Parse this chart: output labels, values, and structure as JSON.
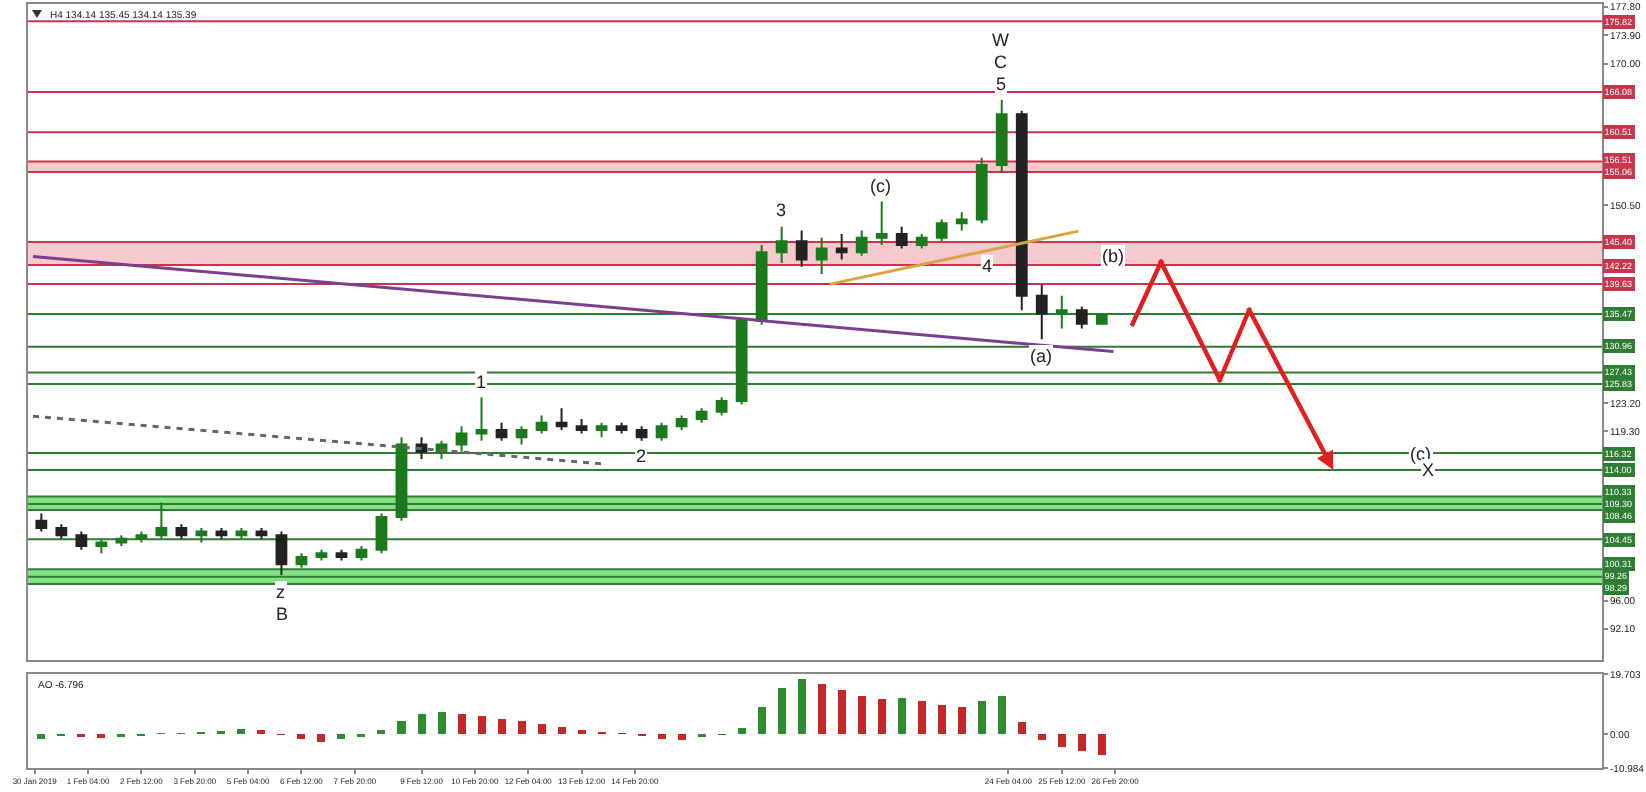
{
  "chart_data": [
    {
      "type": "candlestick",
      "title": "H4 134.14 135.45 134.14 135.39",
      "x": [
        "2019-01-31T00:00",
        "2019-01-31T12:00",
        "2019-02-01T00:00",
        "2019-02-01T12:00",
        "2019-02-02T00:00",
        "2019-02-02T12:00",
        "2019-02-03T00:00",
        "2019-02-03T12:00",
        "2019-02-04T00:00",
        "2019-02-04T12:00",
        "2019-02-05T00:00",
        "2019-02-05T12:00",
        "2019-02-06T00:00",
        "2019-02-06T12:00",
        "2019-02-07T00:00",
        "2019-02-07T12:00",
        "2019-02-08T00:00",
        "2019-02-08T12:00",
        "2019-02-09T00:00",
        "2019-02-09T12:00",
        "2019-02-10T00:00",
        "2019-02-10T12:00",
        "2019-02-11T00:00",
        "2019-02-11T12:00",
        "2019-02-12T00:00",
        "2019-02-12T12:00",
        "2019-02-13T00:00",
        "2019-02-13T12:00",
        "2019-02-14T00:00",
        "2019-02-14T12:00",
        "2019-02-15T00:00",
        "2019-02-15T12:00",
        "2019-02-16T00:00",
        "2019-02-16T12:00",
        "2019-02-17T00:00",
        "2019-02-17T12:00",
        "2019-02-18T00:00",
        "2019-02-18T12:00",
        "2019-02-19T00:00",
        "2019-02-19T12:00",
        "2019-02-20T00:00",
        "2019-02-20T12:00",
        "2019-02-21T00:00",
        "2019-02-21T12:00",
        "2019-02-22T00:00",
        "2019-02-22T12:00",
        "2019-02-23T00:00",
        "2019-02-23T12:00",
        "2019-02-24T00:00",
        "2019-02-24T12:00",
        "2019-02-25T00:00",
        "2019-02-25T12:00",
        "2019-02-26T00:00",
        "2019-02-26T12:00"
      ],
      "ohlc": [
        [
          107,
          108,
          105.5,
          106
        ],
        [
          106,
          106.5,
          104.5,
          105
        ],
        [
          105,
          105.5,
          103,
          103.5
        ],
        [
          103.5,
          104.5,
          102.5,
          104
        ],
        [
          104,
          105,
          103.5,
          104.5
        ],
        [
          104.5,
          105.5,
          104,
          105
        ],
        [
          105,
          109.5,
          104.5,
          106
        ],
        [
          106,
          106.5,
          104.5,
          105
        ],
        [
          105,
          106,
          104,
          105.5
        ],
        [
          105.5,
          106,
          104.5,
          105
        ],
        [
          105,
          106,
          104.5,
          105.5
        ],
        [
          105.5,
          106,
          104.5,
          105
        ],
        [
          105,
          105.5,
          99.5,
          101
        ],
        [
          101,
          102.5,
          100.5,
          102
        ],
        [
          102,
          103,
          101.5,
          102.5
        ],
        [
          102.5,
          103,
          101.5,
          102
        ],
        [
          102,
          103.5,
          101.5,
          103
        ],
        [
          103,
          108,
          102.5,
          107.5
        ],
        [
          107.5,
          118.5,
          107,
          117.5
        ],
        [
          117.5,
          118.5,
          115.5,
          116.5
        ],
        [
          116.5,
          118,
          115.5,
          117.5
        ],
        [
          117.5,
          120,
          116.5,
          119
        ],
        [
          119,
          124,
          118,
          119.5
        ],
        [
          119.5,
          120.5,
          118,
          118.5
        ],
        [
          118.5,
          120,
          117.5,
          119.5
        ],
        [
          119.5,
          121.5,
          119,
          120.5
        ],
        [
          120.5,
          122.5,
          119.5,
          120
        ],
        [
          120,
          121,
          119,
          119.5
        ],
        [
          119.5,
          120.5,
          118.5,
          120
        ],
        [
          120,
          120.5,
          119,
          119.5
        ],
        [
          119.5,
          120,
          118,
          118.5
        ],
        [
          118.5,
          120.5,
          118,
          120
        ],
        [
          120,
          121.5,
          119.5,
          121
        ],
        [
          121,
          122.5,
          120.5,
          122
        ],
        [
          122,
          124,
          121.5,
          123.5
        ],
        [
          123.5,
          135,
          123,
          134.5
        ],
        [
          134.5,
          145,
          134,
          144
        ],
        [
          144,
          147.5,
          142.5,
          145.5
        ],
        [
          145.5,
          147,
          142,
          143
        ],
        [
          143,
          146,
          141,
          144.5
        ],
        [
          144.5,
          146.5,
          143,
          144
        ],
        [
          144,
          147,
          143.5,
          146
        ],
        [
          146,
          151,
          145,
          146.5
        ],
        [
          146.5,
          147.5,
          144.5,
          145
        ],
        [
          145,
          146.5,
          144.5,
          146
        ],
        [
          146,
          148.5,
          145.5,
          148
        ],
        [
          148,
          149.5,
          147,
          148.5
        ],
        [
          148.5,
          157,
          148,
          156
        ],
        [
          156,
          165,
          155,
          163
        ],
        [
          163,
          163.5,
          136,
          138
        ],
        [
          138,
          139.5,
          132,
          135.5
        ],
        [
          135.5,
          138,
          133.5,
          136
        ],
        [
          136,
          136.5,
          133.5,
          134.14
        ],
        [
          134.14,
          135.45,
          134.14,
          135.39
        ]
      ],
      "xlim": [
        "2019-01-30T16:00",
        "2019-03-11T00:00"
      ],
      "ylim": [
        87.8,
        178.2
      ],
      "yticks": [
        {
          "value": 177.8,
          "label": "177.80"
        },
        {
          "value": 173.9,
          "label": "173.90"
        },
        {
          "value": 170,
          "label": "170.00"
        },
        {
          "value": 150.5,
          "label": "150.50"
        },
        {
          "value": 123.2,
          "label": "123.20"
        },
        {
          "value": 119.3,
          "label": "119.30"
        },
        {
          "value": 96,
          "label": "96.00"
        },
        {
          "value": 92.1,
          "label": "92.10"
        }
      ],
      "tick_labels": "y",
      "bands": [
        {
          "axis": "y",
          "from": 155.06,
          "to": 156.51,
          "color": "#f6c9ce"
        },
        {
          "axis": "y",
          "from": 142.22,
          "to": 145.4,
          "color": "#f6c9ce"
        },
        {
          "axis": "y",
          "from": 108.46,
          "to": 110.33,
          "color": "#86e086"
        },
        {
          "axis": "y",
          "from": 98.29,
          "to": 100.31,
          "color": "#86e086"
        }
      ],
      "ref_lines": [
        {
          "axis": "y",
          "value": 175.82,
          "label": "175.82",
          "color": "#c8364c"
        },
        {
          "axis": "y",
          "value": 166.08,
          "label": "166.08",
          "color": "#c8364c"
        },
        {
          "axis": "y",
          "value": 160.51,
          "label": "160.51",
          "color": "#c8364c"
        },
        {
          "axis": "y",
          "value": 156.51,
          "label": "156.51",
          "color": "#c8364c"
        },
        {
          "axis": "y",
          "value": 155.06,
          "label": "155.06",
          "color": "#c8364c"
        },
        {
          "axis": "y",
          "value": 145.4,
          "label": "145.40",
          "color": "#c8364c"
        },
        {
          "axis": "y",
          "value": 142.22,
          "label": "142.22",
          "color": "#c8364c"
        },
        {
          "axis": "y",
          "value": 139.63,
          "label": "139.63",
          "color": "#c8364c"
        },
        {
          "axis": "y",
          "value": 135.47,
          "label": "135.47",
          "color": "#2e7d32"
        },
        {
          "axis": "y",
          "value": 130.96,
          "label": "130.96",
          "color": "#2e7d32"
        },
        {
          "axis": "y",
          "value": 127.43,
          "label": "127.43",
          "color": "#2e7d32"
        },
        {
          "axis": "y",
          "value": 125.83,
          "label": "125.83",
          "color": "#2e7d32"
        },
        {
          "axis": "y",
          "value": 116.32,
          "label": "116.32",
          "color": "#2e7d32"
        },
        {
          "axis": "y",
          "value": 114,
          "label": "114.00",
          "color": "#2e7d32"
        },
        {
          "axis": "y",
          "value": 110.33,
          "label": "110.33",
          "color": "#2e7d32"
        },
        {
          "axis": "y",
          "value": 109.3,
          "label": "109.30",
          "color": "#2e7d32"
        },
        {
          "axis": "y",
          "value": 108.46,
          "label": "108.46",
          "color": "#2e7d32"
        },
        {
          "axis": "y",
          "value": 104.45,
          "label": "104.45",
          "color": "#2e7d32"
        },
        {
          "axis": "y",
          "value": 100.31,
          "label": "100.31",
          "color": "#2e7d32"
        },
        {
          "axis": "y",
          "value": 99.26,
          "label": "99.26",
          "color": "#2e7d32"
        },
        {
          "axis": "y",
          "value": 98.29,
          "label": "98.29",
          "color": "#2e7d32"
        }
      ],
      "series": [
        {
          "type": "line",
          "color": "#7b3f8f",
          "x": [
            "2019-01-30T19:00",
            "2019-02-26T19:00"
          ],
          "values": [
            143.4,
            130.3
          ]
        },
        {
          "type": "line",
          "color": "#666666",
          "line_style": "dotted",
          "x": [
            "2019-01-30T19:00",
            "2019-02-14T02:00"
          ],
          "values": [
            121.4,
            114.8
          ]
        },
        {
          "type": "line",
          "color": "#d9a441",
          "x": [
            "2019-02-19T17:00",
            "2019-02-25T22:00"
          ],
          "values": [
            139.6,
            146.9
          ]
        }
      ],
      "annotations": [
        {
          "text": "W",
          "x": "2019-02-24T00:00",
          "y": 165
        },
        {
          "text": "C",
          "x": "2019-02-24T00:00",
          "y": 165
        },
        {
          "text": "5",
          "x": "2019-02-24T00:00",
          "y": 165
        },
        {
          "text": "3",
          "x": "2019-02-18T12:00",
          "y": 147.5
        },
        {
          "text": "(c)",
          "x": "2019-02-21T00:00",
          "y": 151
        },
        {
          "text": "4",
          "x": "2019-02-23T15:00",
          "y": 142.22
        },
        {
          "text": "(b)",
          "x": "2019-02-26T19:00",
          "y": 143.4
        },
        {
          "text": "(a)",
          "x": "2019-02-25T00:00",
          "y": 132
        },
        {
          "text": "1",
          "x": "2019-02-11T00:00",
          "y": 124
        },
        {
          "text": "2",
          "x": "2019-02-15T00:00",
          "y": 118
        },
        {
          "text": "z",
          "x": "2019-02-06T00:00",
          "y": 99.5
        },
        {
          "text": "B",
          "x": "2019-02-06T00:00",
          "y": 99.5
        },
        {
          "text": "(c)",
          "x": "2019-03-06T12:00",
          "y": 116.32
        },
        {
          "text": "X",
          "x": "2019-03-06T16:00",
          "y": 114
        }
      ]
    },
    {
      "type": "bar",
      "x": [
        "2019-01-31T00:00",
        "2019-01-31T12:00",
        "2019-02-01T00:00",
        "2019-02-01T12:00",
        "2019-02-02T00:00",
        "2019-02-02T12:00",
        "2019-02-03T00:00",
        "2019-02-03T12:00",
        "2019-02-04T00:00",
        "2019-02-04T12:00",
        "2019-02-05T00:00",
        "2019-02-05T12:00",
        "2019-02-06T00:00",
        "2019-02-06T12:00",
        "2019-02-07T00:00",
        "2019-02-07T12:00",
        "2019-02-08T00:00",
        "2019-02-08T12:00",
        "2019-02-09T00:00",
        "2019-02-09T12:00",
        "2019-02-10T00:00",
        "2019-02-10T12:00",
        "2019-02-11T00:00",
        "2019-02-11T12:00",
        "2019-02-12T00:00",
        "2019-02-12T12:00",
        "2019-02-13T00:00",
        "2019-02-13T12:00",
        "2019-02-14T00:00",
        "2019-02-14T12:00",
        "2019-02-15T00:00",
        "2019-02-15T12:00",
        "2019-02-16T00:00",
        "2019-02-16T12:00",
        "2019-02-17T00:00",
        "2019-02-17T12:00",
        "2019-02-18T00:00",
        "2019-02-18T12:00",
        "2019-02-19T00:00",
        "2019-02-19T12:00",
        "2019-02-20T00:00",
        "2019-02-20T12:00",
        "2019-02-21T00:00",
        "2019-02-21T12:00",
        "2019-02-22T00:00",
        "2019-02-22T12:00",
        "2019-02-23T00:00",
        "2019-02-23T12:00",
        "2019-02-24T00:00",
        "2019-02-24T12:00",
        "2019-02-25T00:00",
        "2019-02-25T12:00",
        "2019-02-26T00:00",
        "2019-02-26T12:00"
      ],
      "values": [
        -1.5,
        -0.5,
        -1,
        -1.2,
        -1,
        -0.5,
        0.3,
        0.5,
        0.8,
        1.2,
        1.8,
        1.5,
        -0.3,
        -1.5,
        -2.5,
        -1.5,
        -1,
        1.5,
        4.5,
        6.5,
        7.2,
        6.8,
        6,
        5,
        4.5,
        3.5,
        2.5,
        1.5,
        0.8,
        0.3,
        -0.5,
        -1.5,
        -2,
        -1,
        -0.3,
        2,
        9,
        15,
        18,
        16.5,
        14.5,
        12.5,
        11.5,
        12,
        11,
        9.5,
        9,
        11,
        12.5,
        4,
        -2,
        -4,
        -5.5,
        -6.8
      ],
      "colors": [
        "#2e8b2e",
        "#2e8b2e",
        "#c62828",
        "#c62828",
        "#2e8b2e",
        "#2e8b2e",
        "#2e8b2e",
        "#2e8b2e",
        "#2e8b2e",
        "#2e8b2e",
        "#2e8b2e",
        "#c62828",
        "#c62828",
        "#c62828",
        "#c62828",
        "#2e8b2e",
        "#2e8b2e",
        "#2e8b2e",
        "#2e8b2e",
        "#2e8b2e",
        "#2e8b2e",
        "#c62828",
        "#c62828",
        "#c62828",
        "#c62828",
        "#c62828",
        "#c62828",
        "#c62828",
        "#c62828",
        "#c62828",
        "#c62828",
        "#c62828",
        "#c62828",
        "#2e8b2e",
        "#2e8b2e",
        "#2e8b2e",
        "#2e8b2e",
        "#2e8b2e",
        "#2e8b2e",
        "#c62828",
        "#c62828",
        "#c62828",
        "#c62828",
        "#2e8b2e",
        "#c62828",
        "#c62828",
        "#c62828",
        "#2e8b2e",
        "#2e8b2e",
        "#c62828",
        "#c62828",
        "#c62828",
        "#c62828",
        "#c62828"
      ],
      "xlim": [
        "2019-01-30T16:00",
        "2019-03-11T00:00"
      ],
      "xticks": [
        {
          "value": "2019-01-30T20:00",
          "label": "30 Jan 2019"
        },
        {
          "value": "2019-02-01T04:00",
          "label": "1 Feb 04:00"
        },
        {
          "value": "2019-02-02T12:00",
          "label": "2 Feb 12:00"
        },
        {
          "value": "2019-02-03T20:00",
          "label": "3 Feb 20:00"
        },
        {
          "value": "2019-02-05T04:00",
          "label": "5 Feb 04:00"
        },
        {
          "value": "2019-02-06T12:00",
          "label": "6 Feb 12:00"
        },
        {
          "value": "2019-02-07T20:00",
          "label": "7 Feb 20:00"
        },
        {
          "value": "2019-02-09T12:00",
          "label": "9 Feb 12:00"
        },
        {
          "value": "2019-02-10T20:00",
          "label": "10 Feb 20:00"
        },
        {
          "value": "2019-02-12T04:00",
          "label": "12 Feb 04:00"
        },
        {
          "value": "2019-02-13T12:00",
          "label": "13 Feb 12:00"
        },
        {
          "value": "2019-02-14T20:00",
          "label": "14 Feb 20:00"
        },
        {
          "value": "2019-02-24T04:00",
          "label": "24 Feb 04:00"
        },
        {
          "value": "2019-02-25T12:00",
          "label": "25 Feb 12:00"
        },
        {
          "value": "2019-02-26T20:00",
          "label": "26 Feb 20:00"
        }
      ],
      "ylim": [
        -10.984,
        19.703
      ],
      "yticks": [
        {
          "value": 19.703,
          "label": "19.703"
        },
        {
          "value": 0,
          "label": "0.00"
        },
        {
          "value": -10.984,
          "label": "-10.984"
        }
      ],
      "annotations": [
        "AO -6.796"
      ]
    }
  ]
}
